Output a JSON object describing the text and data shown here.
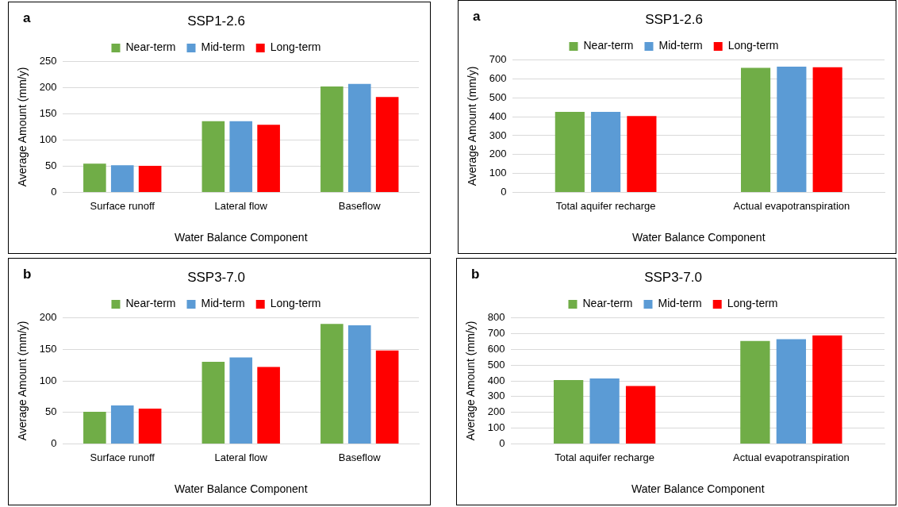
{
  "chart_data": [
    {
      "type": "bar",
      "title": "SSP1-2.6",
      "annotations": [
        "a"
      ],
      "xlabel": "Water Balance Component",
      "ylabel": "Average Amount (mm/y)",
      "categories": [
        "Surface runoff",
        "Lateral flow",
        "Baseflow"
      ],
      "series": [
        {
          "name": "Near-term",
          "color": "#70ad47",
          "values": [
            55,
            136,
            202
          ]
        },
        {
          "name": "Mid-term",
          "color": "#5b9bd5",
          "values": [
            52,
            136,
            207
          ]
        },
        {
          "name": "Long-term",
          "color": "#ff0000",
          "values": [
            51,
            129,
            182
          ]
        }
      ],
      "ylim": [
        0,
        250
      ],
      "yticks": [
        0,
        50,
        100,
        150,
        200,
        250
      ],
      "grid": "y",
      "legend": "top"
    },
    {
      "type": "bar",
      "title": "SSP1-2.6",
      "annotations": [
        "a"
      ],
      "xlabel": "Water Balance Component",
      "ylabel": "Average Amount (mm/y)",
      "categories": [
        "Total aquifer recharge",
        "Actual evapotranspiration"
      ],
      "series": [
        {
          "name": "Near-term",
          "color": "#70ad47",
          "values": [
            425,
            658
          ]
        },
        {
          "name": "Mid-term",
          "color": "#5b9bd5",
          "values": [
            425,
            664
          ]
        },
        {
          "name": "Long-term",
          "color": "#ff0000",
          "values": [
            403,
            661
          ]
        }
      ],
      "ylim": [
        0,
        700
      ],
      "yticks": [
        0,
        100,
        200,
        300,
        400,
        500,
        600,
        700
      ],
      "grid": "y",
      "legend": "top"
    },
    {
      "type": "bar",
      "title": "SSP3-7.0",
      "annotations": [
        "b"
      ],
      "xlabel": "Water Balance Component",
      "ylabel": "Average Amount (mm/y)",
      "categories": [
        "Surface runoff",
        "Lateral flow",
        "Baseflow"
      ],
      "series": [
        {
          "name": "Near-term",
          "color": "#70ad47",
          "values": [
            51,
            130,
            190
          ]
        },
        {
          "name": "Mid-term",
          "color": "#5b9bd5",
          "values": [
            61,
            137,
            188
          ]
        },
        {
          "name": "Long-term",
          "color": "#ff0000",
          "values": [
            56,
            122,
            148
          ]
        }
      ],
      "ylim": [
        0,
        200
      ],
      "yticks": [
        0,
        50,
        100,
        150,
        200
      ],
      "grid": "y",
      "legend": "top"
    },
    {
      "type": "bar",
      "title": "SSP3-7.0",
      "annotations": [
        "b"
      ],
      "xlabel": "Water Balance Component",
      "ylabel": "Average Amount (mm/y)",
      "categories": [
        "Total aquifer recharge",
        "Actual evapotranspiration"
      ],
      "series": [
        {
          "name": "Near-term",
          "color": "#70ad47",
          "values": [
            405,
            652
          ]
        },
        {
          "name": "Mid-term",
          "color": "#5b9bd5",
          "values": [
            415,
            664
          ]
        },
        {
          "name": "Long-term",
          "color": "#ff0000",
          "values": [
            367,
            688
          ]
        }
      ],
      "ylim": [
        0,
        800
      ],
      "yticks": [
        0,
        100,
        200,
        300,
        400,
        500,
        600,
        700,
        800
      ],
      "grid": "y",
      "legend": "top"
    }
  ]
}
